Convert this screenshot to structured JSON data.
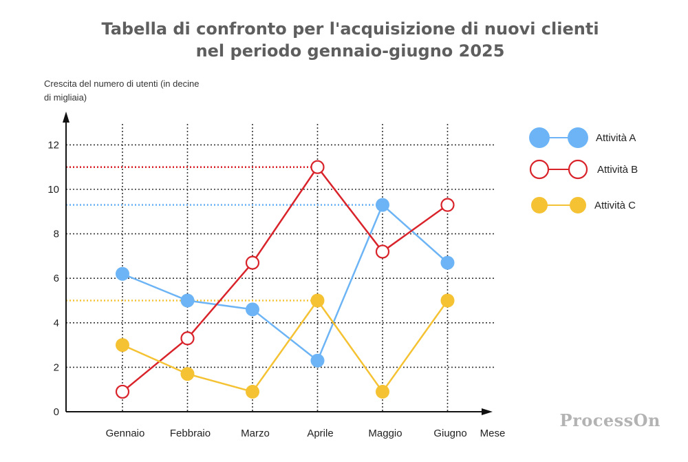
{
  "title": {
    "line1": "Tabella di confronto per l'acquisizione di nuovi clienti",
    "line2": "nel periodo gennaio-giugno 2025"
  },
  "watermark": "ProcessOn",
  "chart_data": {
    "type": "line",
    "title": "Tabella di confronto per l'acquisizione di nuovi clienti nel periodo gennaio-giugno 2025",
    "ylabel": "Crescita del numero di utenti (in decine di migliaia)",
    "xlabel": "Mese",
    "categories": [
      "Gennaio",
      "Febbraio",
      "Marzo",
      "Aprile",
      "Maggio",
      "Giugno"
    ],
    "ylim": [
      0,
      13
    ],
    "yticks": [
      0,
      2,
      4,
      6,
      8,
      10,
      12
    ],
    "grid": true,
    "legend_position": "right",
    "series": [
      {
        "name": "Attività A",
        "values": [
          6.2,
          5.0,
          4.6,
          2.3,
          9.3,
          6.7
        ],
        "color": "#6cb4f5",
        "marker": "filled",
        "max_line": 9.3
      },
      {
        "name": "Attività B",
        "values": [
          0.9,
          3.3,
          6.7,
          11.0,
          7.2,
          9.3
        ],
        "color": "#d9232a",
        "marker": "hollow",
        "max_line": 11.0
      },
      {
        "name": "Attività C",
        "values": [
          3.0,
          1.7,
          0.9,
          5.0,
          0.9,
          5.0
        ],
        "color": "#f5c233",
        "marker": "filled",
        "max_line": 5.0
      }
    ]
  }
}
